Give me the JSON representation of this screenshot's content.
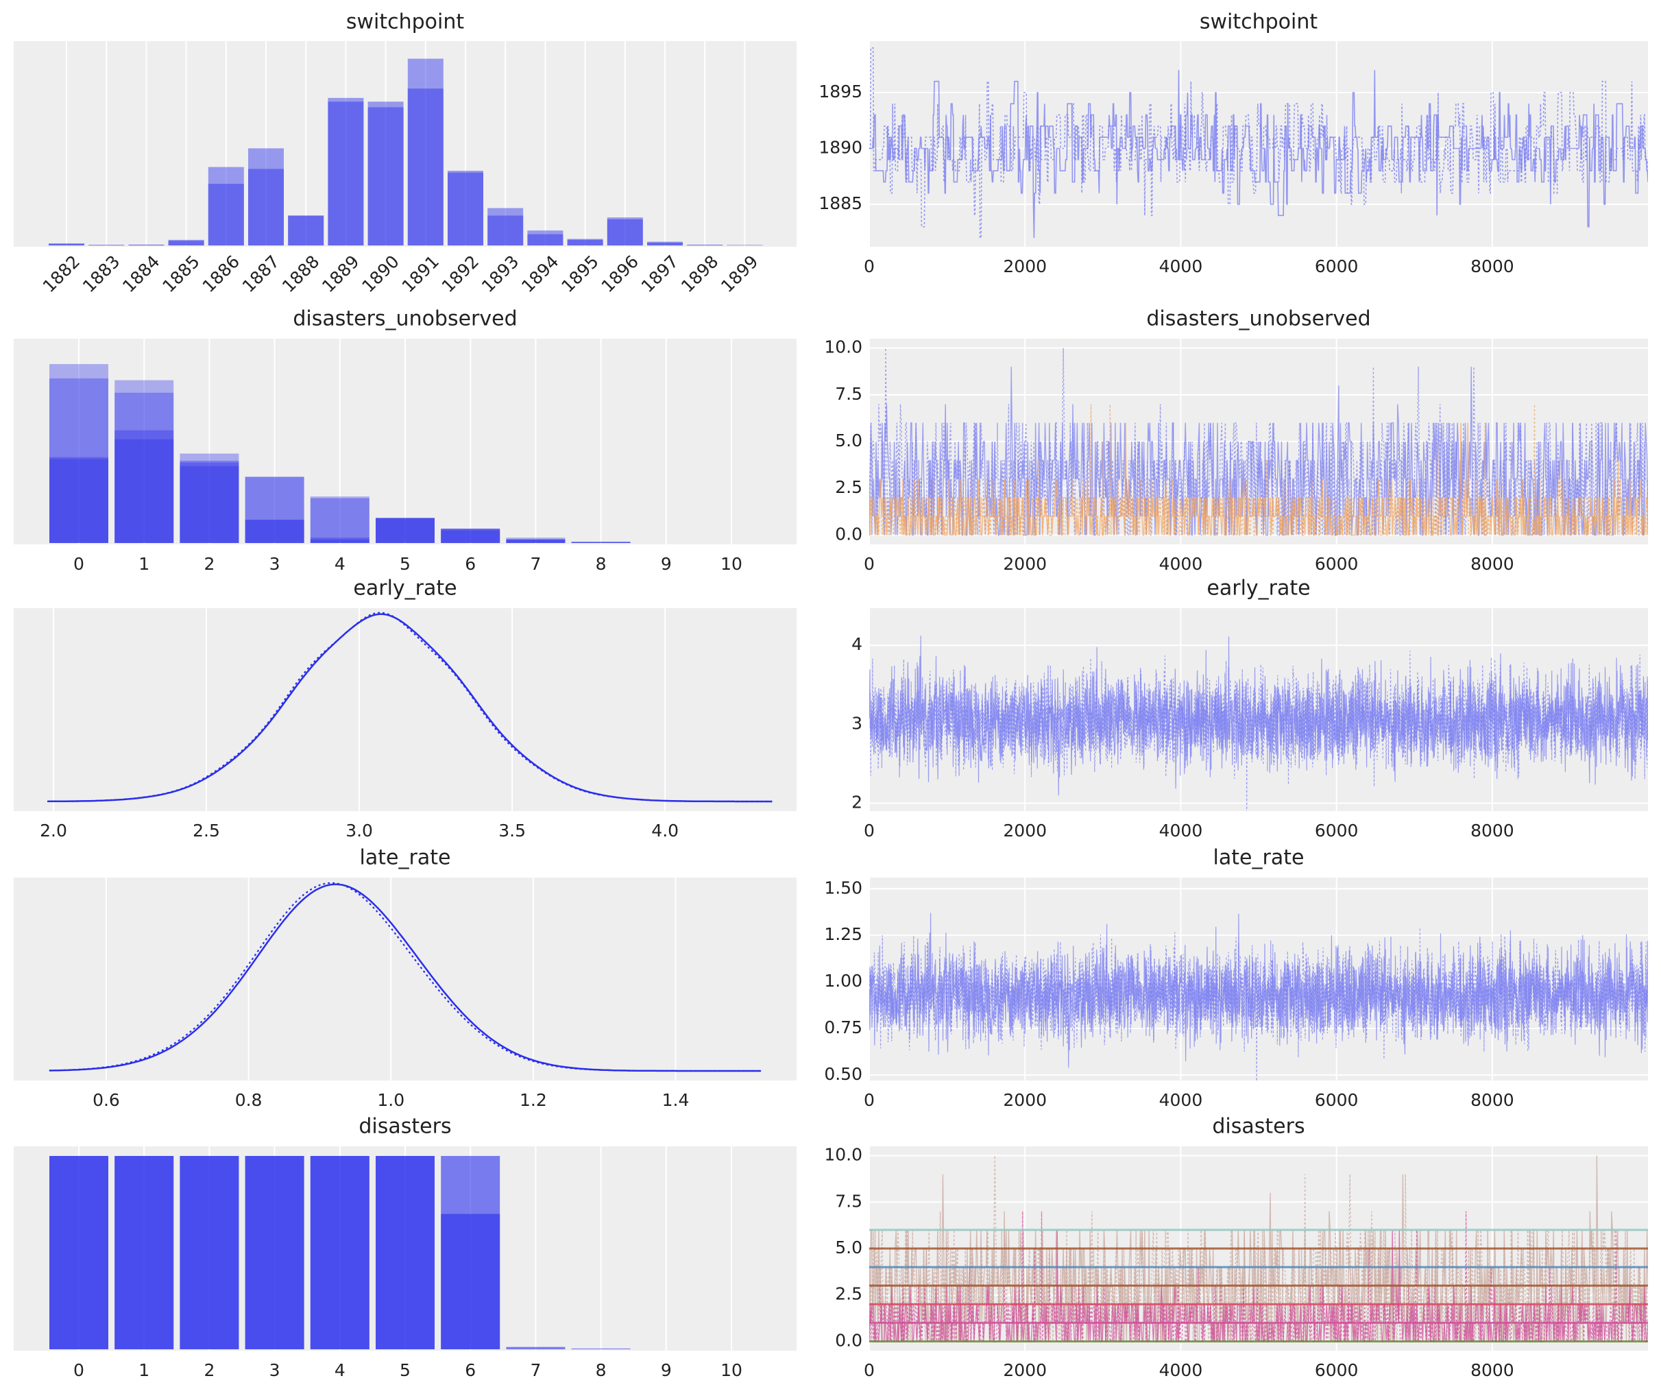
{
  "figure": {
    "background": "#ffffff",
    "panel_background": "#eeeeee",
    "grid_color": "#ffffff",
    "colors": {
      "chain_blue": "#2a2eec",
      "trace_blue": "#7b7ff0",
      "trace_orange": "#f2a35a",
      "trace_pink": "#d0519a",
      "trace_tan": "#c9a89e",
      "trace_teal": "#8fc8c0",
      "trace_olive": "#6a8a3a",
      "trace_brown": "#a0522d",
      "trace_steelblue": "#4f87b7",
      "trace_red": "#d9485a"
    }
  },
  "chart_data": [
    {
      "type": "bar",
      "title": "switchpoint",
      "categories": [
        "1882",
        "1883",
        "1884",
        "1885",
        "1886",
        "1887",
        "1888",
        "1889",
        "1890",
        "1891",
        "1892",
        "1893",
        "1894",
        "1895",
        "1896",
        "1897",
        "1898",
        "1899"
      ],
      "series": [
        {
          "values": [
            0.01,
            0.003,
            0.004,
            0.025,
            0.33,
            0.41,
            0.16,
            0.77,
            0.74,
            0.84,
            0.39,
            0.16,
            0.06,
            0.03,
            0.14,
            0.015,
            0.003,
            0.002
          ]
        },
        {
          "values": [
            0.01,
            0.003,
            0.004,
            0.03,
            0.42,
            0.52,
            0.16,
            0.79,
            0.77,
            1.0,
            0.4,
            0.2,
            0.08,
            0.035,
            0.15,
            0.02,
            0.004,
            0.002
          ]
        }
      ],
      "ylim": [
        0,
        1.05
      ]
    },
    {
      "type": "line",
      "title": "switchpoint",
      "x_ticks": [
        0,
        2000,
        4000,
        6000,
        8000
      ],
      "xlim": [
        0,
        9999
      ],
      "y_ticks": [
        1885,
        1890,
        1895
      ],
      "ylim": [
        1881.2,
        1899.6
      ],
      "center": 1890,
      "spread": 2.2,
      "min": 1882,
      "max": 1899
    },
    {
      "type": "bar",
      "title": "disasters_unobserved",
      "categories": [
        "0",
        "1",
        "2",
        "3",
        "4",
        "5",
        "6",
        "7",
        "8",
        "9",
        "10"
      ],
      "series": [
        {
          "values": [
            0.47,
            0.58,
            0.45,
            0.13,
            0.03,
            0.14,
            0.08,
            0.02,
            0.005,
            0.0,
            0.0
          ]
        },
        {
          "values": [
            1.0,
            0.91,
            0.5,
            0.37,
            0.26,
            0.14,
            0.08,
            0.02,
            0.005,
            0.0,
            0.0
          ]
        },
        {
          "values": [
            0.92,
            0.63,
            0.46,
            0.37,
            0.25,
            0.14,
            0.07,
            0.02,
            0.005,
            0.0,
            0.0
          ]
        },
        {
          "values": [
            0.48,
            0.84,
            0.43,
            0.13,
            0.02,
            0.14,
            0.08,
            0.03,
            0.008,
            0.0,
            0.0
          ]
        }
      ],
      "ylim": [
        0,
        1.05
      ]
    },
    {
      "type": "line",
      "title": "disasters_unobserved",
      "x_ticks": [
        0,
        2000,
        4000,
        6000,
        8000
      ],
      "xlim": [
        0,
        9999
      ],
      "y_ticks": [
        "0.0",
        "2.5",
        "5.0",
        "7.5",
        "10.0"
      ],
      "ylim": [
        -0.5,
        10.5
      ],
      "series": [
        {
          "color": "blue",
          "mean": 2.7,
          "max_typical": 6,
          "max": 10
        },
        {
          "color": "orange",
          "mean": 1.0,
          "max_typical": 3,
          "max": 7
        }
      ]
    },
    {
      "type": "line",
      "title": "early_rate",
      "x_ticks": [
        "2.0",
        "2.5",
        "3.0",
        "3.5",
        "4.0"
      ],
      "xlim": [
        1.87,
        4.43
      ],
      "density": {
        "mean": 3.07,
        "sd": 0.28,
        "from": 1.98,
        "to": 4.35
      }
    },
    {
      "type": "line",
      "title": "early_rate",
      "x_ticks": [
        0,
        2000,
        4000,
        6000,
        8000
      ],
      "xlim": [
        0,
        9999
      ],
      "y_ticks": [
        2,
        3,
        4
      ],
      "ylim": [
        1.9,
        4.47
      ],
      "mean": 3.05,
      "sd": 0.28
    },
    {
      "type": "line",
      "title": "late_rate",
      "x_ticks": [
        "0.6",
        "0.8",
        "1.0",
        "1.2",
        "1.4"
      ],
      "xlim": [
        0.47,
        1.57
      ],
      "density": {
        "mean": 0.925,
        "sd": 0.115,
        "from": 0.52,
        "to": 1.52
      }
    },
    {
      "type": "line",
      "title": "late_rate",
      "x_ticks": [
        0,
        2000,
        4000,
        6000,
        8000
      ],
      "xlim": [
        0,
        9999
      ],
      "y_ticks": [
        "0.50",
        "0.75",
        "1.00",
        "1.25",
        "1.50"
      ],
      "ylim": [
        0.47,
        1.56
      ],
      "mean": 0.93,
      "sd": 0.115
    },
    {
      "type": "bar",
      "title": "disasters",
      "categories": [
        "0",
        "1",
        "2",
        "3",
        "4",
        "5",
        "6",
        "7",
        "8",
        "9",
        "10"
      ],
      "series": [
        {
          "values": [
            1.0,
            1.0,
            1.0,
            1.0,
            1.0,
            1.0,
            1.0,
            0.0,
            0.0,
            0.0,
            0.0
          ]
        },
        {
          "values": [
            1.0,
            1.0,
            1.0,
            1.0,
            1.0,
            1.0,
            0.7,
            0.012,
            0.004,
            0.0,
            0.0
          ]
        }
      ],
      "ylim": [
        0,
        1.0
      ]
    },
    {
      "type": "line",
      "title": "disasters",
      "x_ticks": [
        0,
        2000,
        4000,
        6000,
        8000
      ],
      "xlim": [
        0,
        9999
      ],
      "y_ticks": [
        "0.0",
        "2.5",
        "5.0",
        "7.5",
        "10.0"
      ],
      "ylim": [
        -0.5,
        10.5
      ],
      "constant_lines": [
        {
          "y": 6,
          "color": "teal"
        },
        {
          "y": 5,
          "color": "brown"
        },
        {
          "y": 4,
          "color": "steelblue"
        },
        {
          "y": 3,
          "color": "brown"
        },
        {
          "y": 2,
          "color": "red"
        },
        {
          "y": 1,
          "color": "pink"
        },
        {
          "y": 0,
          "color": "olive"
        }
      ]
    }
  ]
}
